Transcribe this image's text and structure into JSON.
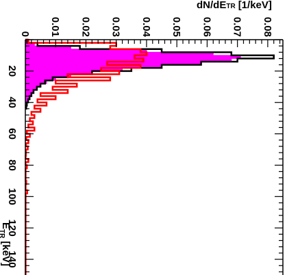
{
  "chart_data": {
    "type": "histogram",
    "orientation": "rotated-90-clockwise",
    "xlabel": "E",
    "xlabel_sub": "TR",
    "xlabel_unit": "[keV]",
    "ylabel": "dN/dE",
    "ylabel_sub": "TR",
    "ylabel_unit": "[1/keV]",
    "xlim": [
      0,
      150
    ],
    "ylim": [
      0,
      0.085
    ],
    "x_ticks": [
      {
        "value": 20,
        "label": "20"
      },
      {
        "value": 40,
        "label": "40"
      },
      {
        "value": 60,
        "label": "60"
      },
      {
        "value": 80,
        "label": "80"
      },
      {
        "value": 100,
        "label": "100"
      },
      {
        "value": 120,
        "label": "120"
      },
      {
        "value": 140,
        "label": "140"
      }
    ],
    "y_ticks": [
      {
        "value": 0,
        "label": "0"
      },
      {
        "value": 0.01,
        "label": "0.01"
      },
      {
        "value": 0.02,
        "label": "0.02"
      },
      {
        "value": 0.03,
        "label": "0.03"
      },
      {
        "value": 0.04,
        "label": "0.04"
      },
      {
        "value": 0.05,
        "label": "0.05"
      },
      {
        "value": 0.06,
        "label": "0.06"
      },
      {
        "value": 0.07,
        "label": "0.07"
      },
      {
        "value": 0.08,
        "label": "0.08"
      }
    ],
    "series": [
      {
        "style": "filled-step",
        "fill": "#ff00ff",
        "stroke": "#ff00ff",
        "bins": [
          [
            0,
            2,
            0.0005
          ],
          [
            2,
            4,
            0.003
          ],
          [
            4,
            6,
            0.015
          ],
          [
            6,
            8,
            0.04
          ],
          [
            8,
            10,
            0.062
          ],
          [
            10,
            12,
            0.071
          ],
          [
            12,
            14,
            0.068
          ],
          [
            14,
            16,
            0.058
          ],
          [
            16,
            18,
            0.045
          ],
          [
            18,
            20,
            0.032
          ],
          [
            20,
            22,
            0.022
          ],
          [
            22,
            24,
            0.015
          ],
          [
            24,
            26,
            0.01
          ],
          [
            26,
            28,
            0.007
          ],
          [
            28,
            30,
            0.005
          ],
          [
            30,
            32,
            0.0035
          ],
          [
            32,
            34,
            0.0025
          ],
          [
            34,
            36,
            0.0018
          ],
          [
            36,
            38,
            0.0012
          ],
          [
            38,
            40,
            0.0008
          ],
          [
            40,
            42,
            0.0005
          ],
          [
            42,
            44,
            0.0003
          ]
        ]
      },
      {
        "style": "step-line",
        "stroke": "#000000",
        "bins": [
          [
            0,
            2,
            0.0006
          ],
          [
            2,
            4,
            0.004
          ],
          [
            4,
            6,
            0.018
          ],
          [
            6,
            8,
            0.045
          ],
          [
            8,
            10,
            0.068
          ],
          [
            10,
            12,
            0.082
          ],
          [
            12,
            14,
            0.07
          ],
          [
            14,
            16,
            0.058
          ],
          [
            16,
            18,
            0.045
          ],
          [
            18,
            20,
            0.035
          ],
          [
            20,
            22,
            0.022
          ],
          [
            22,
            24,
            0.014
          ],
          [
            24,
            26,
            0.009
          ],
          [
            26,
            28,
            0.0065
          ],
          [
            28,
            30,
            0.005
          ],
          [
            30,
            32,
            0.0038
          ],
          [
            32,
            34,
            0.0027
          ],
          [
            34,
            36,
            0.002
          ],
          [
            36,
            38,
            0.0014
          ],
          [
            38,
            40,
            0.0009
          ],
          [
            40,
            42,
            0.0005
          ],
          [
            42,
            44,
            0.0003
          ]
        ]
      },
      {
        "style": "step-line",
        "stroke": "#ff0000",
        "bins": [
          [
            0,
            2,
            0.001
          ],
          [
            2,
            4,
            0.03
          ],
          [
            4,
            6,
            0.028
          ],
          [
            6,
            8,
            0.038
          ],
          [
            8,
            10,
            0.04
          ],
          [
            10,
            12,
            0.036
          ],
          [
            12,
            14,
            0.039
          ],
          [
            14,
            16,
            0.027
          ],
          [
            16,
            18,
            0.038
          ],
          [
            18,
            20,
            0.025
          ],
          [
            20,
            22,
            0.031
          ],
          [
            22,
            24,
            0.014
          ],
          [
            24,
            26,
            0.028
          ],
          [
            26,
            28,
            0.01
          ],
          [
            28,
            30,
            0.017
          ],
          [
            30,
            32,
            0.009
          ],
          [
            32,
            34,
            0.014
          ],
          [
            34,
            36,
            0.005
          ],
          [
            36,
            38,
            0.01
          ],
          [
            38,
            40,
            0.004
          ],
          [
            40,
            42,
            0.007
          ],
          [
            42,
            44,
            0.003
          ],
          [
            44,
            46,
            0.005
          ],
          [
            46,
            48,
            0.002
          ],
          [
            48,
            50,
            0.003
          ],
          [
            50,
            52,
            0.0015
          ],
          [
            52,
            54,
            0.0025
          ],
          [
            54,
            56,
            0.001
          ],
          [
            56,
            58,
            0.003
          ],
          [
            58,
            60,
            0.0005
          ],
          [
            60,
            62,
            0.0015
          ],
          [
            62,
            64,
            0.0003
          ],
          [
            64,
            66,
            0.001
          ],
          [
            66,
            68,
            0.0002
          ],
          [
            68,
            70,
            0.0008
          ],
          [
            70,
            72,
            0.0002
          ],
          [
            72,
            74,
            0.0002
          ],
          [
            74,
            76,
            0.0001
          ],
          [
            76,
            78,
            0.001
          ],
          [
            78,
            80,
            0.0001
          ],
          [
            80,
            82,
            0.0005
          ],
          [
            82,
            84,
            0.0001
          ],
          [
            84,
            86,
            0.0001
          ],
          [
            86,
            88,
            0.0001
          ],
          [
            88,
            90,
            0.0001
          ],
          [
            90,
            92,
            0.0003
          ],
          [
            92,
            94,
            0.0001
          ],
          [
            94,
            96,
            0.0001
          ],
          [
            96,
            98,
            0.0006
          ],
          [
            98,
            100,
            0.0001
          ],
          [
            100,
            150,
            0.0001
          ]
        ]
      }
    ]
  }
}
